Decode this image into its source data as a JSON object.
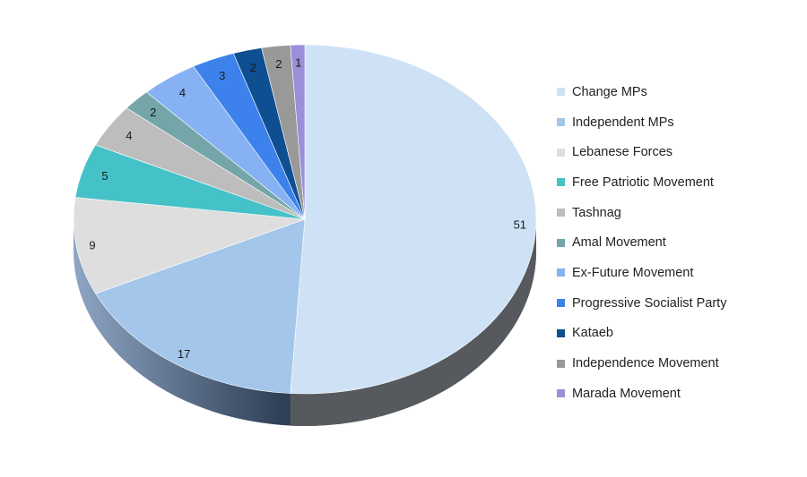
{
  "chart_data": {
    "type": "pie",
    "title": "",
    "legend_position": "right",
    "series": [
      {
        "name": "Change MPs",
        "value": 51,
        "color": "#cfe2f5"
      },
      {
        "name": "Independent MPs",
        "value": 17,
        "color": "#a3c6ea"
      },
      {
        "name": "Lebanese Forces",
        "value": 9,
        "color": "#dedede"
      },
      {
        "name": "Free Patriotic Movement",
        "value": 5,
        "color": "#45c2c8"
      },
      {
        "name": "Tashnag",
        "value": 4,
        "color": "#bdbdbd"
      },
      {
        "name": "Amal Movement",
        "value": 2,
        "color": "#74a5a8"
      },
      {
        "name": "Ex-Future Movement",
        "value": 4,
        "color": "#86b1f2"
      },
      {
        "name": "Progressive Socialist Party",
        "value": 3,
        "color": "#3d82ec"
      },
      {
        "name": "Kataeb",
        "value": 2,
        "color": "#0e4f91"
      },
      {
        "name": "Independence Movement",
        "value": 2,
        "color": "#999999"
      },
      {
        "name": "Marada Movement",
        "value": 1,
        "color": "#9a8fd8"
      }
    ]
  }
}
